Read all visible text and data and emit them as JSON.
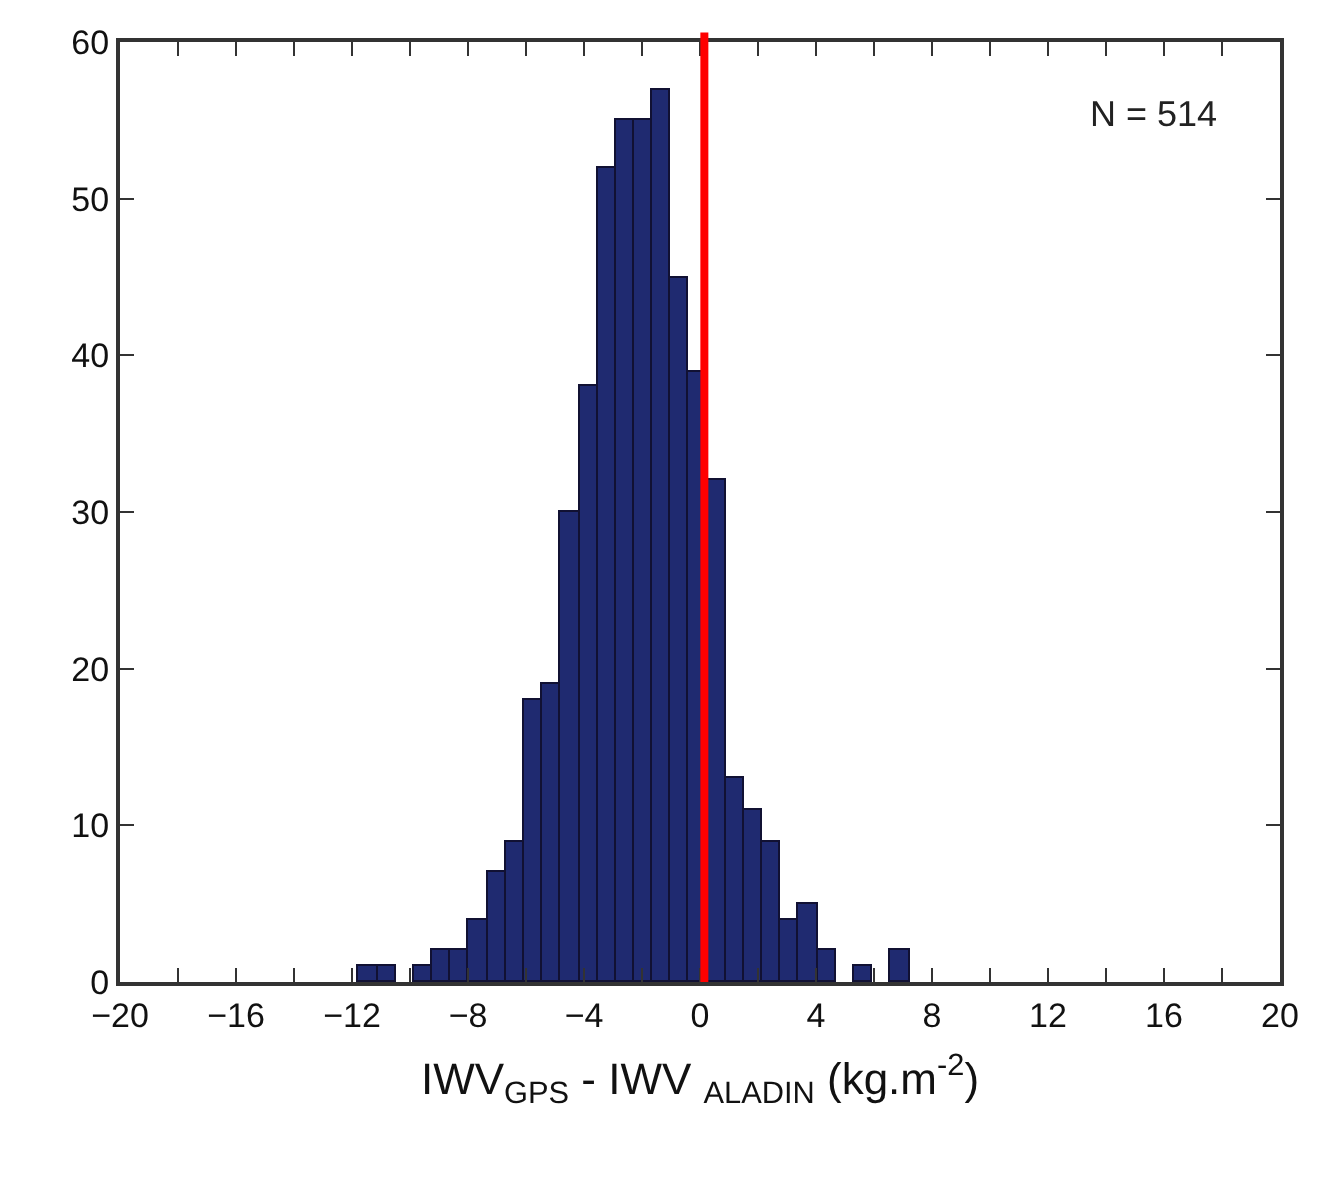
{
  "chart_data": {
    "type": "histogram",
    "bins": [
      -11.76,
      -11.13,
      -10.5,
      -9.86,
      -9.23,
      -8.6,
      -7.97,
      -7.33,
      -6.7,
      -6.07,
      -5.44,
      -4.8,
      -4.17,
      -3.54,
      -2.91,
      -2.28,
      -1.64,
      -1.01,
      -0.38,
      0.25,
      0.89,
      1.52,
      2.15,
      2.78,
      3.41,
      4.05,
      4.68,
      5.31,
      5.94,
      6.58,
      7.21
    ],
    "values": [
      1,
      1,
      0,
      1,
      2,
      2,
      4,
      7,
      9,
      18,
      19,
      30,
      38,
      52,
      55,
      55,
      57,
      45,
      39,
      32,
      13,
      11,
      9,
      4,
      5,
      2,
      0,
      1,
      0,
      2
    ],
    "color": "#1f2a70",
    "xlabel": "IWV$_{GPS}$ - IWV $_{ALADIN}$ (kg.m$^{-2}$)",
    "annotations": [
      "N = 514"
    ],
    "xlim": [
      -20,
      20
    ],
    "xticks": [
      -20,
      {
        "value": -18,
        "label": null
      },
      -16,
      {
        "value": -14,
        "label": null
      },
      -12,
      {
        "value": -10,
        "label": null
      },
      -8,
      {
        "value": -6,
        "label": null
      },
      -4,
      {
        "value": -2,
        "label": null
      },
      0,
      {
        "value": 2,
        "label": null
      },
      4,
      {
        "value": 6,
        "label": null
      },
      8,
      {
        "value": 10,
        "label": null
      },
      12,
      {
        "value": 14,
        "label": null
      },
      16,
      {
        "value": 18,
        "label": null
      },
      20
    ],
    "ylim": [
      0,
      60
    ],
    "yticks": [
      0,
      10,
      20,
      30,
      40,
      50,
      60
    ],
    "ref_lines": [
      {
        "axis": "x",
        "value": 0.15,
        "color": "#ff0000"
      }
    ]
  }
}
